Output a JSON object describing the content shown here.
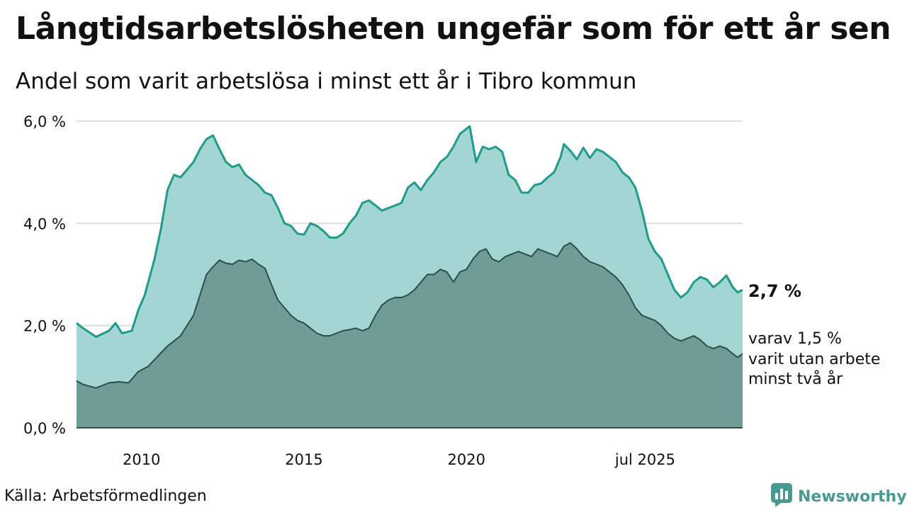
{
  "header": {
    "title": "Långtidsarbetslösheten ungefär som för ett år sen",
    "subtitle": "Andel som varit arbetslösa i minst ett år i Tibro kommun"
  },
  "footer": {
    "source": "Källa: Arbetsförmedlingen",
    "brand": "Newsworthy"
  },
  "colors": {
    "accent": "#1f9b8b",
    "area_one_year": "#a3d6d2",
    "area_two_years": "#6f9c96",
    "line_two_years": "#2c4e49",
    "brand": "#4a9a92"
  },
  "chart_data": {
    "type": "area",
    "x_unit": "year",
    "ylim": [
      0,
      6
    ],
    "y_ticks": [
      0,
      2,
      4,
      6
    ],
    "y_tick_labels": [
      "0,0 %",
      "2,0 %",
      "4,0 %",
      "6,0 %"
    ],
    "x_ticks": [
      2010,
      2015,
      2020,
      2025.5
    ],
    "x_tick_labels": [
      "2010",
      "2015",
      "2020",
      "jul 2025"
    ],
    "grid": true,
    "series": [
      {
        "key": "one_year",
        "points": [
          [
            2008.0,
            2.05
          ],
          [
            2008.2,
            1.95
          ],
          [
            2008.6,
            1.78
          ],
          [
            2009.0,
            1.9
          ],
          [
            2009.2,
            2.05
          ],
          [
            2009.4,
            1.85
          ],
          [
            2009.7,
            1.9
          ],
          [
            2009.9,
            2.3
          ],
          [
            2010.1,
            2.6
          ],
          [
            2010.4,
            3.3
          ],
          [
            2010.6,
            3.9
          ],
          [
            2010.8,
            4.65
          ],
          [
            2011.0,
            4.95
          ],
          [
            2011.2,
            4.9
          ],
          [
            2011.4,
            5.05
          ],
          [
            2011.6,
            5.2
          ],
          [
            2011.8,
            5.45
          ],
          [
            2012.0,
            5.65
          ],
          [
            2012.2,
            5.72
          ],
          [
            2012.4,
            5.45
          ],
          [
            2012.6,
            5.2
          ],
          [
            2012.8,
            5.1
          ],
          [
            2013.0,
            5.15
          ],
          [
            2013.2,
            4.95
          ],
          [
            2013.4,
            4.85
          ],
          [
            2013.6,
            4.75
          ],
          [
            2013.8,
            4.6
          ],
          [
            2014.0,
            4.55
          ],
          [
            2014.2,
            4.3
          ],
          [
            2014.4,
            4.0
          ],
          [
            2014.6,
            3.95
          ],
          [
            2014.8,
            3.8
          ],
          [
            2015.0,
            3.78
          ],
          [
            2015.2,
            4.0
          ],
          [
            2015.4,
            3.95
          ],
          [
            2015.6,
            3.85
          ],
          [
            2015.8,
            3.72
          ],
          [
            2016.0,
            3.72
          ],
          [
            2016.2,
            3.8
          ],
          [
            2016.4,
            4.0
          ],
          [
            2016.6,
            4.15
          ],
          [
            2016.8,
            4.4
          ],
          [
            2017.0,
            4.45
          ],
          [
            2017.2,
            4.35
          ],
          [
            2017.4,
            4.25
          ],
          [
            2017.6,
            4.3
          ],
          [
            2017.8,
            4.35
          ],
          [
            2018.0,
            4.4
          ],
          [
            2018.2,
            4.7
          ],
          [
            2018.4,
            4.8
          ],
          [
            2018.6,
            4.65
          ],
          [
            2018.8,
            4.85
          ],
          [
            2019.0,
            5.0
          ],
          [
            2019.2,
            5.2
          ],
          [
            2019.4,
            5.3
          ],
          [
            2019.6,
            5.5
          ],
          [
            2019.8,
            5.75
          ],
          [
            2020.0,
            5.85
          ],
          [
            2020.1,
            5.9
          ],
          [
            2020.3,
            5.2
          ],
          [
            2020.5,
            5.5
          ],
          [
            2020.7,
            5.45
          ],
          [
            2020.9,
            5.5
          ],
          [
            2021.1,
            5.4
          ],
          [
            2021.3,
            4.95
          ],
          [
            2021.5,
            4.85
          ],
          [
            2021.7,
            4.6
          ],
          [
            2021.9,
            4.6
          ],
          [
            2022.1,
            4.75
          ],
          [
            2022.3,
            4.78
          ],
          [
            2022.5,
            4.9
          ],
          [
            2022.7,
            5.0
          ],
          [
            2022.9,
            5.3
          ],
          [
            2023.0,
            5.55
          ],
          [
            2023.2,
            5.42
          ],
          [
            2023.4,
            5.25
          ],
          [
            2023.6,
            5.48
          ],
          [
            2023.8,
            5.28
          ],
          [
            2024.0,
            5.45
          ],
          [
            2024.2,
            5.4
          ],
          [
            2024.4,
            5.3
          ],
          [
            2024.6,
            5.2
          ],
          [
            2024.8,
            5.0
          ],
          [
            2025.0,
            4.9
          ],
          [
            2025.2,
            4.7
          ],
          [
            2025.4,
            4.25
          ],
          [
            2025.6,
            3.7
          ],
          [
            2025.8,
            3.45
          ],
          [
            2026.0,
            3.3
          ],
          [
            2026.2,
            3.0
          ],
          [
            2026.4,
            2.7
          ],
          [
            2026.6,
            2.55
          ],
          [
            2026.8,
            2.65
          ],
          [
            2027.0,
            2.85
          ],
          [
            2027.2,
            2.95
          ],
          [
            2027.4,
            2.9
          ],
          [
            2027.6,
            2.75
          ],
          [
            2027.8,
            2.85
          ],
          [
            2028.0,
            2.98
          ],
          [
            2028.2,
            2.75
          ],
          [
            2028.35,
            2.65
          ],
          [
            2028.5,
            2.7
          ]
        ]
      },
      {
        "key": "two_years",
        "points": [
          [
            2008.0,
            0.92
          ],
          [
            2008.2,
            0.85
          ],
          [
            2008.6,
            0.78
          ],
          [
            2009.0,
            0.88
          ],
          [
            2009.3,
            0.9
          ],
          [
            2009.6,
            0.88
          ],
          [
            2009.9,
            1.1
          ],
          [
            2010.2,
            1.2
          ],
          [
            2010.5,
            1.4
          ],
          [
            2010.8,
            1.6
          ],
          [
            2011.0,
            1.7
          ],
          [
            2011.2,
            1.8
          ],
          [
            2011.4,
            2.0
          ],
          [
            2011.6,
            2.2
          ],
          [
            2011.8,
            2.6
          ],
          [
            2012.0,
            3.0
          ],
          [
            2012.2,
            3.15
          ],
          [
            2012.4,
            3.28
          ],
          [
            2012.6,
            3.22
          ],
          [
            2012.8,
            3.2
          ],
          [
            2013.0,
            3.28
          ],
          [
            2013.2,
            3.25
          ],
          [
            2013.4,
            3.3
          ],
          [
            2013.6,
            3.2
          ],
          [
            2013.8,
            3.12
          ],
          [
            2014.0,
            2.8
          ],
          [
            2014.2,
            2.5
          ],
          [
            2014.4,
            2.35
          ],
          [
            2014.6,
            2.2
          ],
          [
            2014.8,
            2.1
          ],
          [
            2015.0,
            2.05
          ],
          [
            2015.2,
            1.95
          ],
          [
            2015.4,
            1.85
          ],
          [
            2015.6,
            1.8
          ],
          [
            2015.8,
            1.8
          ],
          [
            2016.0,
            1.85
          ],
          [
            2016.2,
            1.9
          ],
          [
            2016.4,
            1.92
          ],
          [
            2016.6,
            1.95
          ],
          [
            2016.8,
            1.9
          ],
          [
            2017.0,
            1.95
          ],
          [
            2017.2,
            2.2
          ],
          [
            2017.4,
            2.4
          ],
          [
            2017.6,
            2.5
          ],
          [
            2017.8,
            2.55
          ],
          [
            2018.0,
            2.55
          ],
          [
            2018.2,
            2.6
          ],
          [
            2018.4,
            2.7
          ],
          [
            2018.6,
            2.85
          ],
          [
            2018.8,
            3.0
          ],
          [
            2019.0,
            3.0
          ],
          [
            2019.2,
            3.1
          ],
          [
            2019.4,
            3.05
          ],
          [
            2019.6,
            2.85
          ],
          [
            2019.8,
            3.05
          ],
          [
            2020.0,
            3.1
          ],
          [
            2020.2,
            3.3
          ],
          [
            2020.4,
            3.45
          ],
          [
            2020.6,
            3.5
          ],
          [
            2020.8,
            3.3
          ],
          [
            2021.0,
            3.25
          ],
          [
            2021.2,
            3.35
          ],
          [
            2021.4,
            3.4
          ],
          [
            2021.6,
            3.45
          ],
          [
            2021.8,
            3.4
          ],
          [
            2022.0,
            3.35
          ],
          [
            2022.2,
            3.5
          ],
          [
            2022.4,
            3.45
          ],
          [
            2022.6,
            3.4
          ],
          [
            2022.8,
            3.35
          ],
          [
            2023.0,
            3.55
          ],
          [
            2023.2,
            3.62
          ],
          [
            2023.4,
            3.5
          ],
          [
            2023.6,
            3.35
          ],
          [
            2023.8,
            3.25
          ],
          [
            2024.0,
            3.2
          ],
          [
            2024.2,
            3.15
          ],
          [
            2024.4,
            3.05
          ],
          [
            2024.6,
            2.95
          ],
          [
            2024.8,
            2.8
          ],
          [
            2025.0,
            2.6
          ],
          [
            2025.2,
            2.35
          ],
          [
            2025.4,
            2.2
          ],
          [
            2025.6,
            2.15
          ],
          [
            2025.8,
            2.1
          ],
          [
            2026.0,
            2.0
          ],
          [
            2026.2,
            1.85
          ],
          [
            2026.4,
            1.75
          ],
          [
            2026.6,
            1.7
          ],
          [
            2026.8,
            1.75
          ],
          [
            2027.0,
            1.8
          ],
          [
            2027.2,
            1.72
          ],
          [
            2027.4,
            1.6
          ],
          [
            2027.6,
            1.55
          ],
          [
            2027.8,
            1.6
          ],
          [
            2028.0,
            1.55
          ],
          [
            2028.2,
            1.45
          ],
          [
            2028.35,
            1.38
          ],
          [
            2028.5,
            1.45
          ]
        ]
      }
    ],
    "end_labels": {
      "one_year": "2,7 %",
      "two_years_lines": [
        "varav 1,5 %",
        "varit utan arbete",
        "minst två år"
      ]
    }
  }
}
